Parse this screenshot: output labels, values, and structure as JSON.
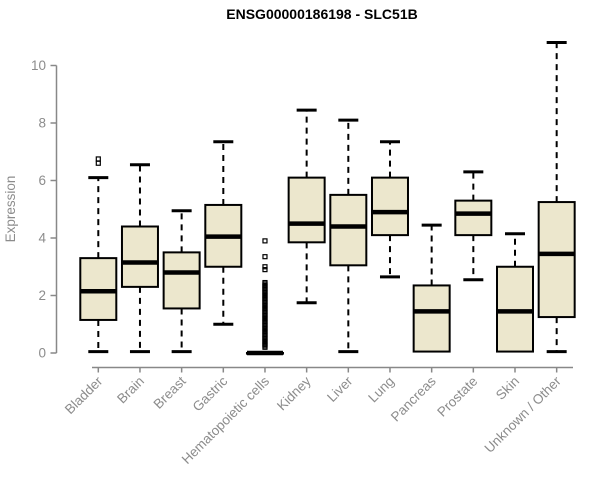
{
  "page": {
    "background": "#ffffff"
  },
  "chart_data": {
    "type": "boxplot",
    "title": "ENSG00000186198 - SLC51B",
    "ylabel": "Expression",
    "xlabel": "",
    "ylim": [
      0,
      10
    ],
    "yticks": [
      0,
      2,
      4,
      6,
      8,
      10
    ],
    "grid": false,
    "legend": false,
    "box_fill": "#ece7cd",
    "box_stroke": "#000000",
    "axis_color": "#888888",
    "label_color": "#8c8c8c",
    "title_color": "#000000",
    "categories": [
      "Bladder",
      "Brain",
      "Breast",
      "Gastric",
      "Hematopoietic cells",
      "Kidney",
      "Liver",
      "Lung",
      "Pancreas",
      "Prostate",
      "Skin",
      "Unknown / Other"
    ],
    "series": [
      {
        "category": "Bladder",
        "min": 0.05,
        "q1": 1.15,
        "median": 2.15,
        "q3": 3.3,
        "max": 6.1,
        "outliers": [
          6.6,
          6.75
        ]
      },
      {
        "category": "Brain",
        "min": 0.05,
        "q1": 2.3,
        "median": 3.15,
        "q3": 4.4,
        "max": 6.55,
        "outliers": []
      },
      {
        "category": "Breast",
        "min": 0.05,
        "q1": 1.55,
        "median": 2.8,
        "q3": 3.5,
        "max": 4.95,
        "outliers": []
      },
      {
        "category": "Gastric",
        "min": 1.0,
        "q1": 3.0,
        "median": 4.05,
        "q3": 5.15,
        "max": 7.35,
        "outliers": []
      },
      {
        "category": "Hematopoietic cells",
        "min": 0,
        "q1": 0,
        "median": 0,
        "q3": 0,
        "max": 0,
        "outliers": [
          0.2,
          0.25,
          0.3,
          0.35,
          0.4,
          0.45,
          0.5,
          0.55,
          0.6,
          0.65,
          0.7,
          0.75,
          0.8,
          0.85,
          0.9,
          0.95,
          1.0,
          1.05,
          1.1,
          1.15,
          1.2,
          1.25,
          1.3,
          1.35,
          1.4,
          1.45,
          1.5,
          1.55,
          1.6,
          1.65,
          1.7,
          1.75,
          1.8,
          1.85,
          1.9,
          1.95,
          2.0,
          2.05,
          2.1,
          2.15,
          2.2,
          2.25,
          2.3,
          2.35,
          2.4,
          2.45,
          2.9,
          3.0,
          3.35,
          3.9
        ]
      },
      {
        "category": "Kidney",
        "min": 1.75,
        "q1": 3.85,
        "median": 4.5,
        "q3": 6.1,
        "max": 8.45,
        "outliers": []
      },
      {
        "category": "Liver",
        "min": 0.05,
        "q1": 3.05,
        "median": 4.4,
        "q3": 5.5,
        "max": 8.1,
        "outliers": []
      },
      {
        "category": "Lung",
        "min": 2.65,
        "q1": 4.1,
        "median": 4.9,
        "q3": 6.1,
        "max": 7.35,
        "outliers": []
      },
      {
        "category": "Pancreas",
        "min": 0.05,
        "q1": 0.05,
        "median": 1.45,
        "q3": 2.35,
        "max": 4.45,
        "outliers": []
      },
      {
        "category": "Prostate",
        "min": 2.55,
        "q1": 4.1,
        "median": 4.85,
        "q3": 5.3,
        "max": 6.3,
        "outliers": []
      },
      {
        "category": "Skin",
        "min": 0.05,
        "q1": 0.05,
        "median": 1.45,
        "q3": 3.0,
        "max": 4.15,
        "outliers": []
      },
      {
        "category": "Unknown / Other",
        "min": 0.05,
        "q1": 1.25,
        "median": 3.45,
        "q3": 5.25,
        "max": 10.8,
        "outliers": []
      }
    ]
  }
}
